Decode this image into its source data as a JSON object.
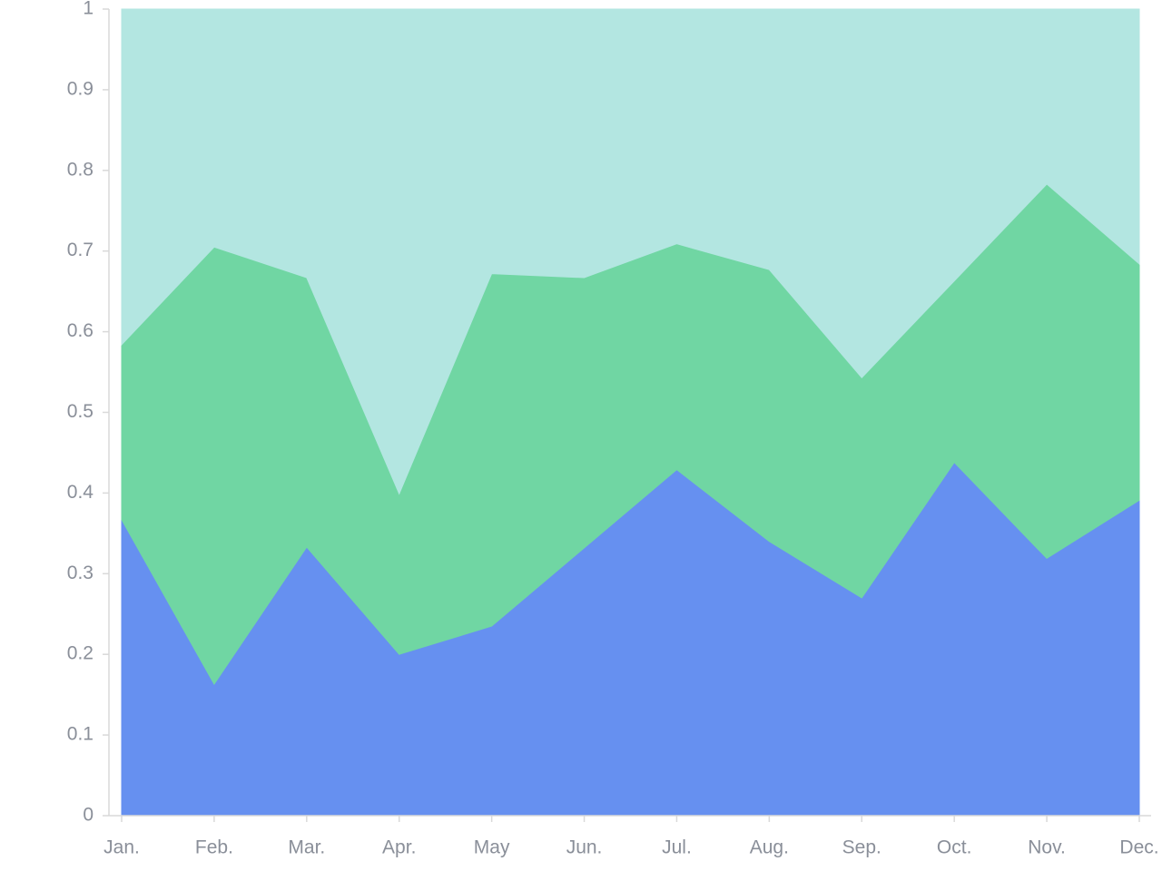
{
  "chart_data": {
    "type": "area",
    "stacked": true,
    "categories": [
      "Jan.",
      "Feb.",
      "Mar.",
      "Apr.",
      "May",
      "Jun.",
      "Jul.",
      "Aug.",
      "Sep.",
      "Oct.",
      "Nov.",
      "Dec."
    ],
    "series": [
      {
        "color": "#6690f0",
        "values": [
          0.367,
          0.163,
          0.333,
          0.2,
          0.235,
          0.332,
          0.429,
          0.34,
          0.27,
          0.438,
          0.319,
          0.391
        ]
      },
      {
        "color": "#70d6a3",
        "values": [
          0.217,
          0.542,
          0.334,
          0.199,
          0.437,
          0.335,
          0.28,
          0.337,
          0.273,
          0.225,
          0.464,
          0.293
        ]
      },
      {
        "color": "#b3e6e1",
        "values": [
          0.416,
          0.295,
          0.333,
          0.601,
          0.328,
          0.333,
          0.291,
          0.323,
          0.457,
          0.337,
          0.217,
          0.316
        ]
      }
    ],
    "ylim": [
      0,
      1
    ],
    "yticks": [
      0,
      0.1,
      0.2,
      0.3,
      0.4,
      0.5,
      0.6,
      0.7,
      0.8,
      0.9,
      1
    ],
    "grid": false
  }
}
